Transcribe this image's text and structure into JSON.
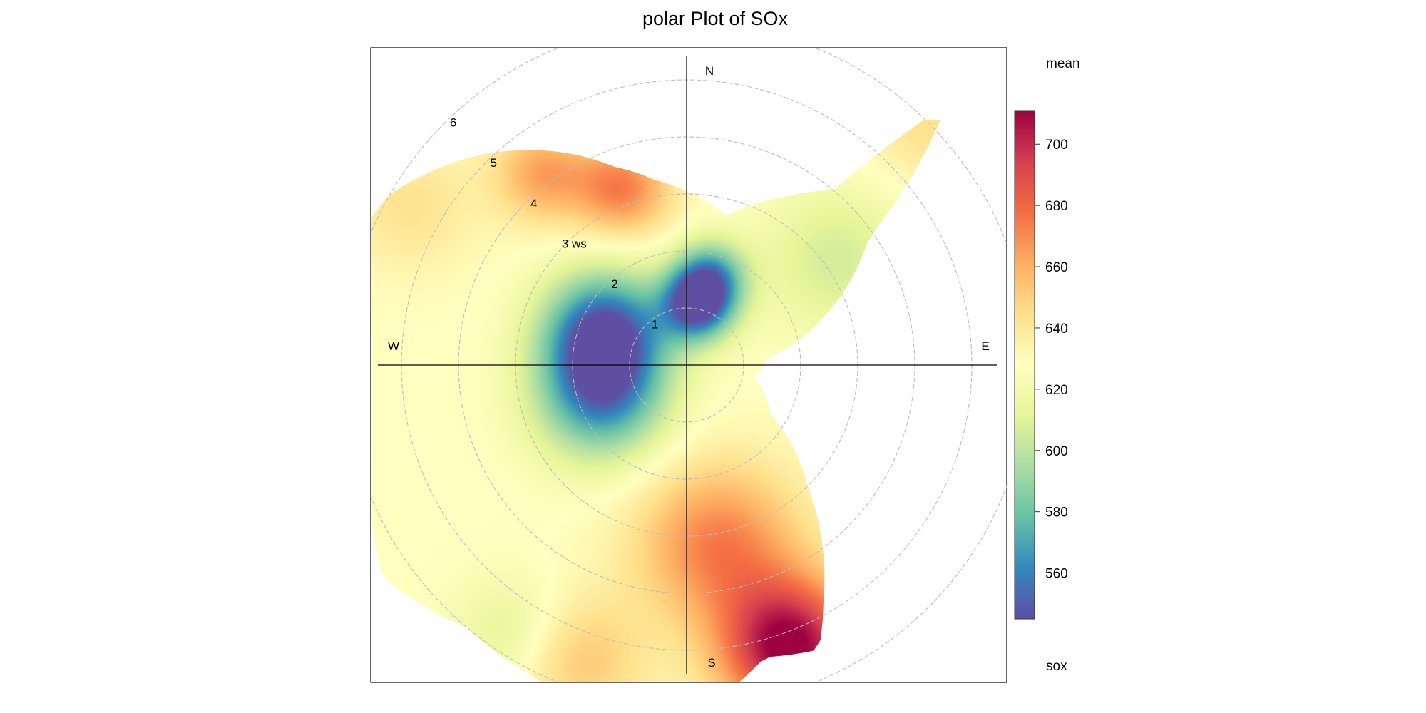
{
  "chart_data": {
    "type": "polar-heatmap",
    "title": "polar Plot of SOx",
    "radial_axis": {
      "name": "ws",
      "ticks": [
        1,
        2,
        3,
        4,
        5,
        6
      ],
      "labels": [
        "1",
        "2",
        "3 ws",
        "4",
        "5",
        "6"
      ],
      "range": [
        0,
        6.5
      ]
    },
    "directions": [
      {
        "label": "N",
        "angle": 0
      },
      {
        "label": "E",
        "angle": 90
      },
      {
        "label": "S",
        "angle": 180
      },
      {
        "label": "W",
        "angle": 270
      }
    ],
    "colorbar": {
      "title": "mean",
      "variable": "sox",
      "min": 545,
      "max": 711,
      "ticks": [
        560,
        580,
        600,
        620,
        640,
        660,
        680,
        700
      ],
      "palette": [
        "#5E4FA2",
        "#3288BD",
        "#66C2A5",
        "#ABDDA4",
        "#E6F598",
        "#FFFFBF",
        "#FEE08B",
        "#FDAE61",
        "#F46D43",
        "#D53E4F",
        "#9E0142"
      ]
    },
    "field": {
      "base": 628,
      "hotspots": [
        {
          "dir": 292,
          "ws": 1.55,
          "delta": -78,
          "spread": 0.75
        },
        {
          "dir": 250,
          "ws": 1.6,
          "delta": -62,
          "spread": 0.8
        },
        {
          "dir": 10,
          "ws": 1.05,
          "delta": -75,
          "spread": 0.45
        },
        {
          "dir": 15,
          "ws": 1.6,
          "delta": -55,
          "spread": 0.45
        },
        {
          "dir": 340,
          "ws": 3.3,
          "delta": 45,
          "spread": 0.6
        },
        {
          "dir": 323,
          "ws": 4.2,
          "delta": 35,
          "spread": 0.6
        },
        {
          "dir": 160,
          "ws": 5.3,
          "delta": 85,
          "spread": 0.85
        },
        {
          "dir": 170,
          "ws": 3.2,
          "delta": 45,
          "spread": 1.0
        },
        {
          "dir": 200,
          "ws": 5.5,
          "delta": 25,
          "spread": 0.8
        },
        {
          "dir": 213,
          "ws": 5.6,
          "delta": -18,
          "spread": 0.7
        },
        {
          "dir": 45,
          "ws": 5.9,
          "delta": 15,
          "spread": 0.7
        },
        {
          "dir": 55,
          "ws": 3.2,
          "delta": -22,
          "spread": 0.9
        },
        {
          "dir": 300,
          "ws": 5.6,
          "delta": 15,
          "spread": 0.8
        }
      ],
      "coverage": [
        {
          "dir": 0,
          "ws": 3.05
        },
        {
          "dir": 15,
          "ws": 2.7
        },
        {
          "dir": 30,
          "ws": 3.4
        },
        {
          "dir": 40,
          "ws": 4.0
        },
        {
          "dir": 45,
          "ws": 6.45
        },
        {
          "dir": 55,
          "ws": 3.9
        },
        {
          "dir": 70,
          "ws": 2.6
        },
        {
          "dir": 85,
          "ws": 1.45
        },
        {
          "dir": 100,
          "ws": 1.2
        },
        {
          "dir": 120,
          "ws": 1.7
        },
        {
          "dir": 135,
          "ws": 3.0
        },
        {
          "dir": 150,
          "ws": 4.8
        },
        {
          "dir": 155,
          "ws": 5.5
        },
        {
          "dir": 165,
          "ws": 5.3
        },
        {
          "dir": 180,
          "ws": 6.2
        },
        {
          "dir": 190,
          "ws": 6.55
        },
        {
          "dir": 205,
          "ws": 6.1
        },
        {
          "dir": 220,
          "ws": 6.0
        },
        {
          "dir": 235,
          "ws": 6.5
        },
        {
          "dir": 255,
          "ws": 5.7
        },
        {
          "dir": 270,
          "ws": 5.8
        },
        {
          "dir": 285,
          "ws": 6.3
        },
        {
          "dir": 300,
          "ws": 6.0
        },
        {
          "dir": 315,
          "ws": 5.2
        },
        {
          "dir": 325,
          "ws": 4.6
        },
        {
          "dir": 340,
          "ws": 3.7
        },
        {
          "dir": 350,
          "ws": 3.3
        }
      ]
    }
  }
}
